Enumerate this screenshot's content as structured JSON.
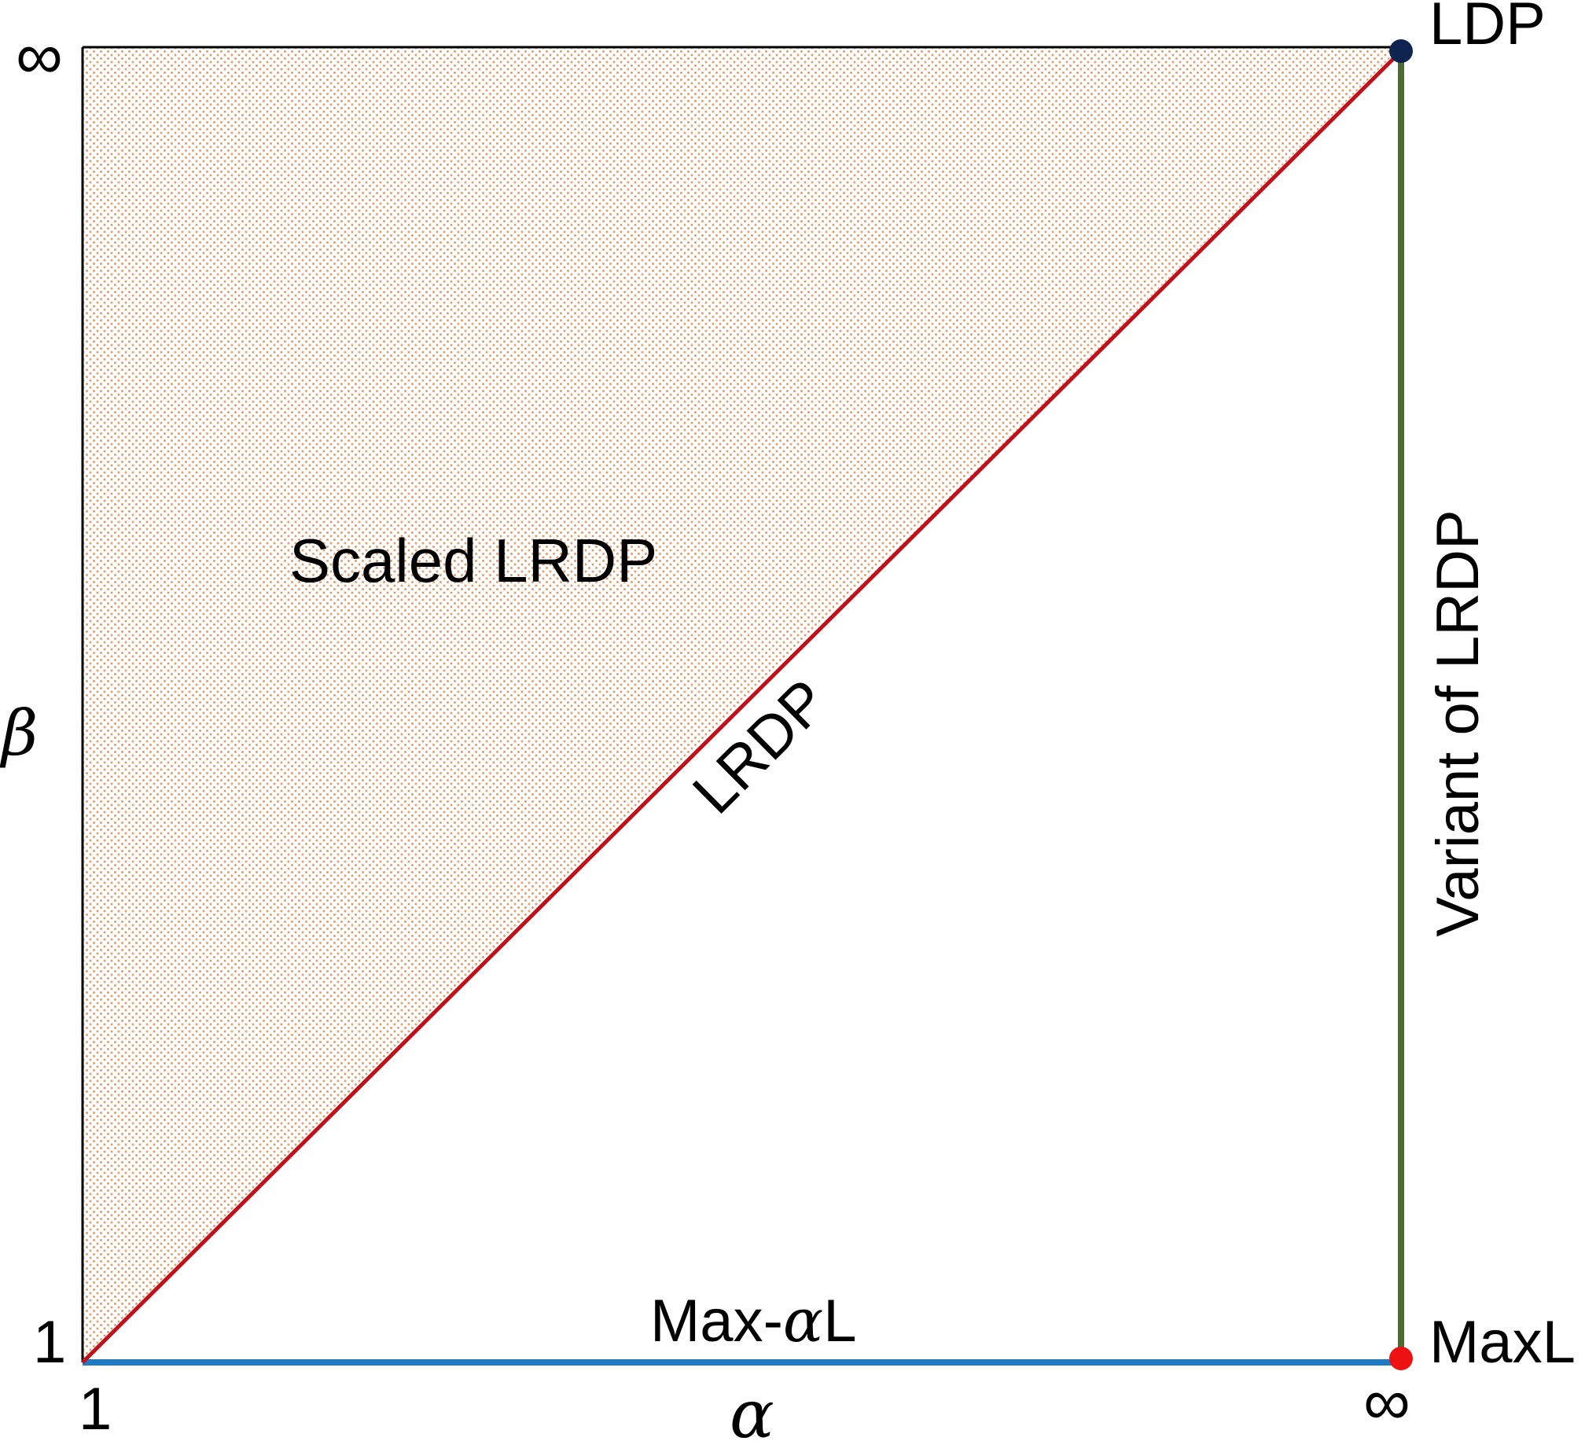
{
  "axes": {
    "x_label": "α",
    "y_label": "β",
    "x_min_tick": "1",
    "x_max_tick": "∞",
    "y_min_tick": "1",
    "y_max_tick": "∞"
  },
  "regions": {
    "shaded_label": "Scaled LRDP"
  },
  "lines": {
    "diagonal_label": "LRDP",
    "bottom_label_prefix": "Max-",
    "bottom_label_alpha": "α",
    "bottom_label_suffix": "L",
    "right_label": "Variant of LRDP"
  },
  "points": {
    "top_right": "LDP",
    "bottom_right": "MaxL"
  },
  "colors": {
    "shading_dots": "#e0a070",
    "diagonal_line": "#c0101a",
    "bottom_line": "#1f7ac4",
    "right_line": "#4d6a35",
    "top_point": "#0d2450",
    "bottom_point": "#ee1111",
    "frame": "#000000"
  }
}
